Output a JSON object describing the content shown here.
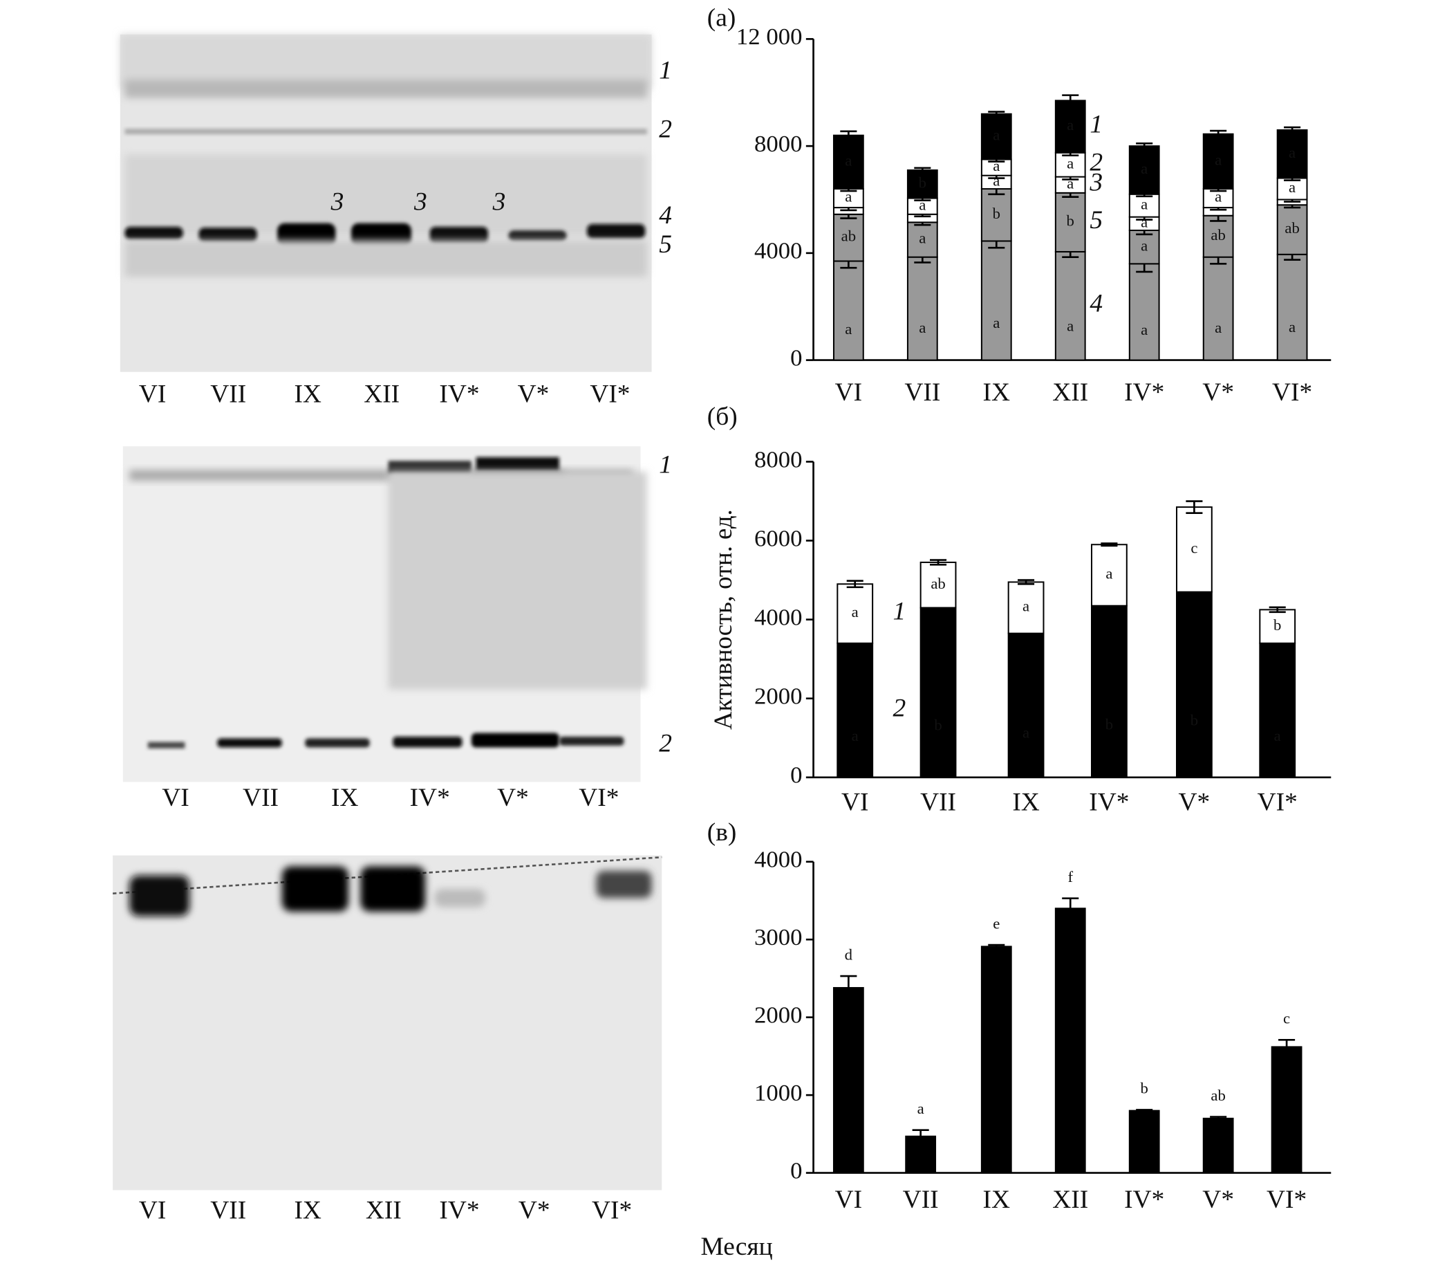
{
  "gels": [
    {
      "lanes": [
        "VI",
        "VII",
        "IX",
        "XII",
        "IV*",
        "V*",
        "VI*"
      ],
      "band_labels": [
        "1",
        "2",
        "4",
        "5",
        "3",
        "3",
        "3"
      ]
    },
    {
      "lanes": [
        "VI",
        "VII",
        "IX",
        "IV*",
        "V*",
        "VI*"
      ],
      "band_labels": [
        "1",
        "2"
      ]
    },
    {
      "lanes": [
        "VI",
        "VII",
        "IX",
        "XII",
        "IV*",
        "V*",
        "VI*"
      ]
    }
  ],
  "chart_data": [
    {
      "type": "stacked_bar",
      "title": "(а)",
      "categories": [
        "VI",
        "VII",
        "IX",
        "XII",
        "IV*",
        "V*",
        "VI*"
      ],
      "series": [
        {
          "name": "4",
          "color": "#999999",
          "values": [
            3700,
            3850,
            4450,
            4050,
            3600,
            3850,
            3950
          ],
          "errors": [
            250,
            200,
            250,
            200,
            300,
            250,
            200
          ],
          "letters": [
            "a",
            "a",
            "a",
            "a",
            "a",
            "a",
            "a"
          ]
        },
        {
          "name": "5",
          "color": "#999999",
          "values": [
            1750,
            1300,
            1950,
            2200,
            1250,
            1550,
            1850
          ],
          "errors": [
            150,
            100,
            200,
            150,
            150,
            200,
            100
          ],
          "letters": [
            "ab",
            "a",
            "b",
            "b",
            "a",
            "ab",
            "ab"
          ]
        },
        {
          "name": "3",
          "color": "#ffffff",
          "values": [
            250,
            300,
            500,
            600,
            500,
            300,
            200
          ],
          "errors": [
            100,
            80,
            100,
            100,
            100,
            80,
            80
          ],
          "letters": [
            null,
            null,
            "a",
            "a",
            "a",
            null,
            null
          ]
        },
        {
          "name": "2",
          "color": "#ffffff",
          "values": [
            700,
            600,
            600,
            900,
            850,
            700,
            800
          ],
          "errors": [
            80,
            80,
            80,
            100,
            80,
            80,
            80
          ],
          "letters": [
            "a",
            "a",
            "a",
            "a",
            "a",
            "a",
            "a"
          ]
        },
        {
          "name": "1",
          "color": "#000000",
          "values": [
            2000,
            1050,
            1700,
            1950,
            1800,
            2050,
            1800
          ],
          "errors": [
            150,
            80,
            80,
            200,
            100,
            120,
            100
          ],
          "letters": [
            "a",
            "b",
            "a",
            "a",
            "a",
            "a",
            "a"
          ]
        }
      ],
      "ylim": [
        0,
        12000
      ],
      "yticks": [
        0,
        4000,
        8000,
        {
          "value": 12000,
          "label": "12 000"
        }
      ]
    },
    {
      "type": "stacked_bar",
      "title": "(б)",
      "ylabel": "Активность, отн. ед.",
      "categories": [
        "VI",
        "VII",
        "IX",
        "IV*",
        "V*",
        "VI*"
      ],
      "series": [
        {
          "name": "2",
          "color": "#000000",
          "values": [
            3400,
            4300,
            3650,
            4350,
            4700,
            3400
          ],
          "errors": [
            150,
            50,
            50,
            250,
            50,
            50
          ],
          "letters": [
            "a",
            "b",
            "a",
            "b",
            "b",
            "a"
          ]
        },
        {
          "name": "1",
          "color": "#ffffff",
          "values": [
            1500,
            1150,
            1300,
            1550,
            2150,
            850
          ],
          "errors": [
            80,
            60,
            50,
            30,
            150,
            60
          ],
          "letters": [
            "a",
            "ab",
            "a",
            "a",
            "c",
            "b"
          ]
        }
      ],
      "ylim": [
        0,
        8000
      ],
      "yticks": [
        0,
        2000,
        4000,
        6000,
        8000
      ]
    },
    {
      "type": "bar",
      "title": "(в)",
      "xlabel": "Месяц",
      "categories": [
        "VI",
        "VII",
        "IX",
        "XII",
        "IV*",
        "V*",
        "VI*"
      ],
      "series": [
        {
          "color": "#000000",
          "values": [
            2380,
            470,
            2910,
            3400,
            800,
            700,
            1620
          ],
          "errors": [
            150,
            80,
            20,
            130,
            10,
            20,
            90
          ],
          "letters": [
            "d",
            "a",
            "e",
            "f",
            "b",
            "ab",
            "c"
          ]
        }
      ],
      "ylim": [
        0,
        4000
      ],
      "yticks": [
        0,
        1000,
        2000,
        3000,
        4000
      ]
    }
  ]
}
